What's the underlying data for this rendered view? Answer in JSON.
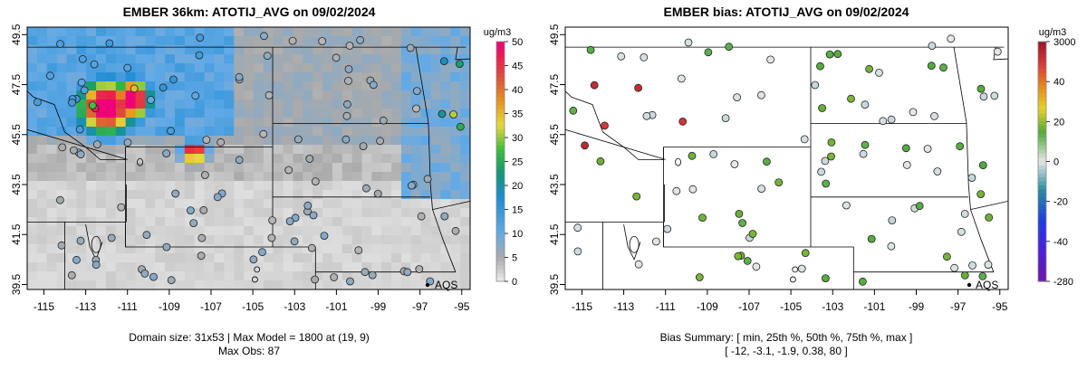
{
  "left": {
    "title": "EMBER 36km: ATOTIJ_AVG on 09/02/2024",
    "colorbar_unit": "ug/m3",
    "colorbar_labels": [
      "50",
      "45",
      "40",
      "35",
      "30",
      "25",
      "20",
      "15",
      "10",
      "5",
      "0"
    ],
    "footer_line1": "Domain size: 31x53 | Max Model = 1800 at (19, 9)",
    "footer_line2": "Max Obs: 87"
  },
  "right": {
    "title": "EMBER bias: ATOTIJ_AVG on 09/02/2024",
    "colorbar_unit": "ug/m3",
    "colorbar_labels": [
      "3000",
      "40",
      "20",
      "0",
      "-20",
      "-40",
      "-280"
    ],
    "footer_line1": "Bias Summary: [ min, 25th %, 50th %, 75th %, max ]",
    "footer_line2": "[ -12,   -3.1,   -1.9,   0.38,   80 ]"
  },
  "site_label": "AQS",
  "chart_data": [
    {
      "type": "heatmap",
      "title": "EMBER 36km: ATOTIJ_AVG on 09/02/2024",
      "x_ticks": [
        "-115",
        "-113",
        "-111",
        "-109",
        "-107",
        "-105",
        "-103",
        "-101",
        "-99",
        "-97",
        "-95"
      ],
      "y_ticks": [
        "39.5",
        "41.5",
        "43.5",
        "45.5",
        "47.5",
        "49.5"
      ],
      "xlim": [
        -115.8,
        -94.6
      ],
      "ylim": [
        39.3,
        49.8
      ],
      "colorbar": {
        "unit": "ug/m3",
        "min": 0,
        "max": 50,
        "ticks": [
          0,
          5,
          10,
          15,
          20,
          25,
          30,
          35,
          40,
          45,
          50
        ]
      },
      "max_model": 1800,
      "max_model_cell": [
        19,
        9
      ],
      "domain_size": "31x53",
      "max_obs": 87
    },
    {
      "type": "scatter",
      "title": "EMBER bias: ATOTIJ_AVG on 09/02/2024",
      "x_ticks": [
        "-115",
        "-113",
        "-111",
        "-109",
        "-107",
        "-105",
        "-103",
        "-101",
        "-99",
        "-97",
        "-95"
      ],
      "y_ticks": [
        "39.5",
        "41.5",
        "43.5",
        "45.5",
        "47.5",
        "49.5"
      ],
      "xlim": [
        -115.8,
        -94.6
      ],
      "ylim": [
        39.3,
        49.8
      ],
      "colorbar": {
        "unit": "ug/m3",
        "ticks": [
          3000,
          40,
          20,
          0,
          -20,
          -40,
          -280
        ]
      },
      "bias_summary": {
        "min": -12,
        "p25": -3.1,
        "p50": -1.9,
        "p75": 0.38,
        "max": 80
      }
    }
  ]
}
